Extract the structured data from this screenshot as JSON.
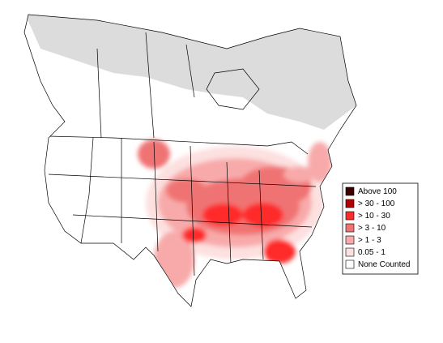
{
  "legend": {
    "items": [
      {
        "label": "Above 100",
        "color": "#3d0000"
      },
      {
        "label": "> 30 - 100",
        "color": "#b30000"
      },
      {
        "label": "> 10 - 30",
        "color": "#ff2a2a"
      },
      {
        "label": "> 3 - 10",
        "color": "#f07373"
      },
      {
        "label": "> 1 - 3",
        "color": "#f8aaaa"
      },
      {
        "label": "0.05 - 1",
        "color": "#fde0e0"
      },
      {
        "label": "None Counted",
        "color": "#ffffff"
      }
    ]
  }
}
